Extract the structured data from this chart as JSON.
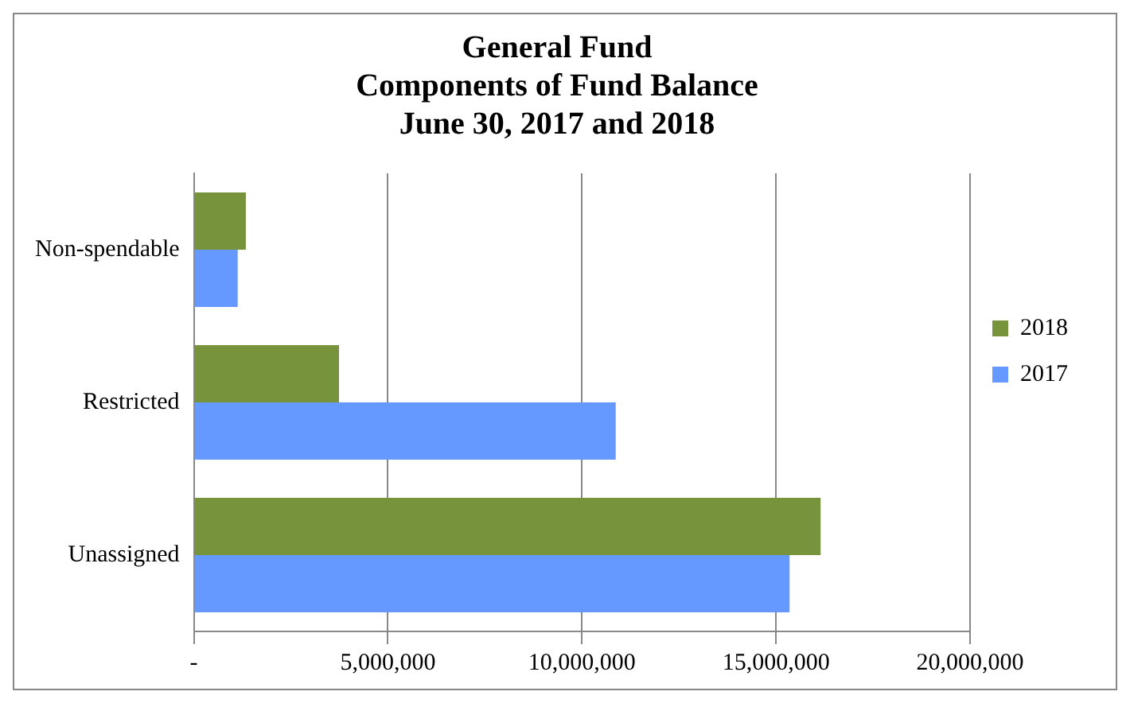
{
  "chart_data": {
    "type": "bar",
    "orientation": "horizontal",
    "title": "General Fund\nComponents of Fund Balance\nJune 30, 2017 and 2018",
    "categories": [
      "Non-spendable",
      "Restricted",
      "Unassigned"
    ],
    "series": [
      {
        "name": "2018",
        "color": "#77933c",
        "values": [
          1340000,
          3740000,
          16150000
        ]
      },
      {
        "name": "2017",
        "color": "#6699ff",
        "values": [
          1130000,
          10870000,
          15350000
        ]
      }
    ],
    "xlim": [
      0,
      20000000
    ],
    "xticks": [
      {
        "value": 0,
        "label": "-"
      },
      {
        "value": 5000000,
        "label": "5,000,000"
      },
      {
        "value": 10000000,
        "label": "10,000,000"
      },
      {
        "value": 15000000,
        "label": "15,000,000"
      },
      {
        "value": 20000000,
        "label": "20,000,000"
      }
    ],
    "grid": "x",
    "legend": "right"
  }
}
